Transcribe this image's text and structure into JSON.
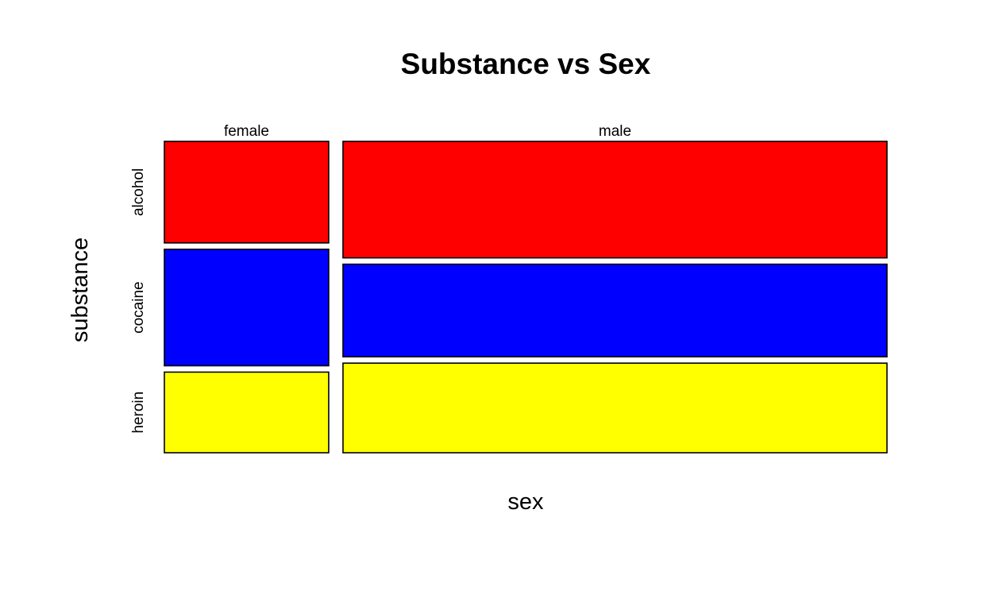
{
  "chart_data": {
    "type": "mosaic",
    "title": "Substance vs Sex",
    "xlabel": "sex",
    "ylabel": "substance",
    "x_categories": [
      "female",
      "male"
    ],
    "y_categories": [
      "alcohol",
      "cocaine",
      "heroin"
    ],
    "x_proportions": [
      0.232,
      0.768
    ],
    "y_proportions_by_x": [
      [
        0.34,
        0.39,
        0.27
      ],
      [
        0.39,
        0.31,
        0.3
      ]
    ],
    "colors": {
      "alcohol": "#ff0000",
      "cocaine": "#0000ff",
      "heroin": "#ffff00"
    },
    "grid": false,
    "legend": "none"
  }
}
